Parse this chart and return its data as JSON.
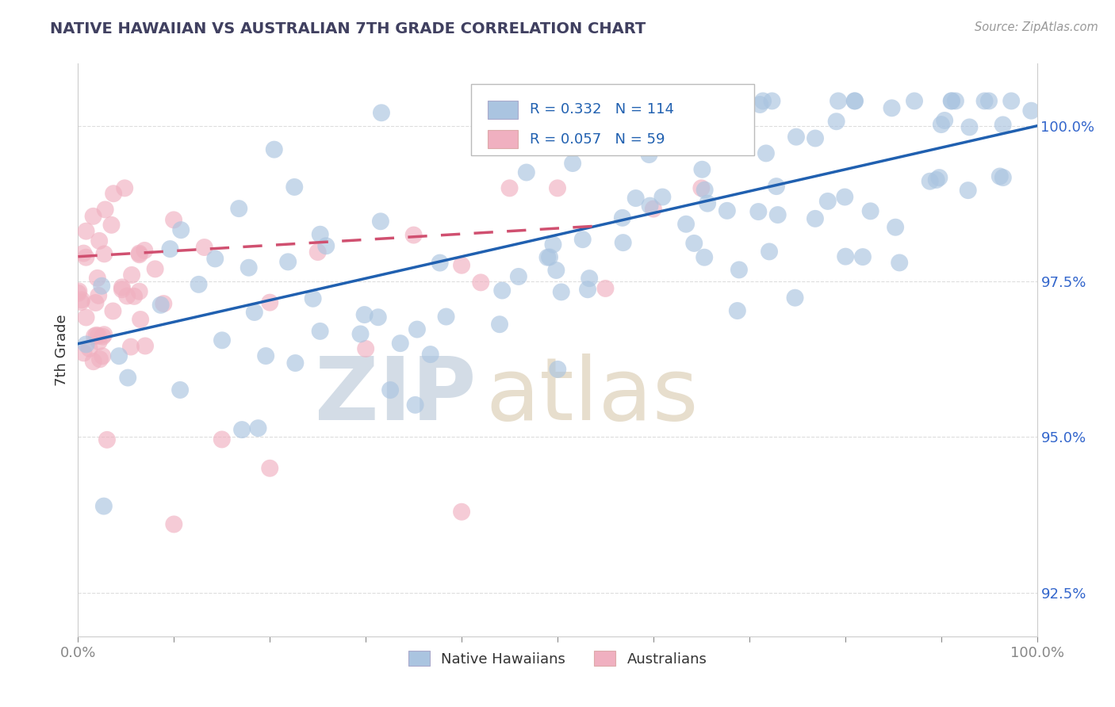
{
  "title": "NATIVE HAWAIIAN VS AUSTRALIAN 7TH GRADE CORRELATION CHART",
  "source_text": "Source: ZipAtlas.com",
  "ylabel": "7th Grade",
  "xlim": [
    0.0,
    100.0
  ],
  "ylim": [
    91.8,
    101.0
  ],
  "yticks": [
    92.5,
    95.0,
    97.5,
    100.0
  ],
  "xtick_labels": [
    "0.0%",
    "100.0%"
  ],
  "ytick_labels": [
    "92.5%",
    "95.0%",
    "97.5%",
    "100.0%"
  ],
  "legend_R1": "0.332",
  "legend_N1": "114",
  "legend_R2": "0.057",
  "legend_N2": "59",
  "blue_color": "#aac4e0",
  "pink_color": "#f0b0c0",
  "blue_line_color": "#2060b0",
  "pink_line_color": "#d05070",
  "title_color": "#404060",
  "axis_label_color": "#333333",
  "tick_color": "#3366cc",
  "grid_color": "#dddddd",
  "blue_line_x0": 0,
  "blue_line_x1": 100,
  "blue_line_y0": 96.5,
  "blue_line_y1": 100.0,
  "pink_line_x0": 0,
  "pink_line_x1": 55,
  "pink_line_y0": 97.9,
  "pink_line_y1": 98.4
}
